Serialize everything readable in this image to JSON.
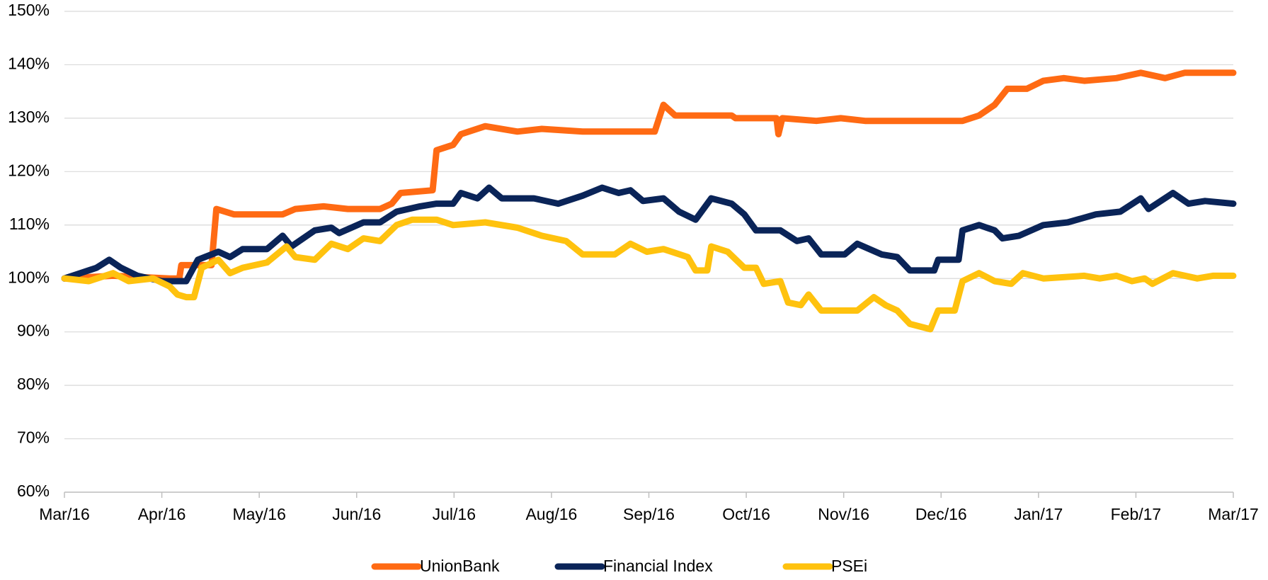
{
  "chart_data": {
    "type": "line",
    "xlim": [
      0,
      12
    ],
    "xticks": [
      {
        "value": 0,
        "label": "Mar/16"
      },
      {
        "value": 1,
        "label": "Apr/16"
      },
      {
        "value": 2,
        "label": "May/16"
      },
      {
        "value": 3,
        "label": "Jun/16"
      },
      {
        "value": 4,
        "label": "Jul/16"
      },
      {
        "value": 5,
        "label": "Aug/16"
      },
      {
        "value": 6,
        "label": "Sep/16"
      },
      {
        "value": 7,
        "label": "Oct/16"
      },
      {
        "value": 8,
        "label": "Nov/16"
      },
      {
        "value": 9,
        "label": "Dec/16"
      },
      {
        "value": 10,
        "label": "Jan/17"
      },
      {
        "value": 11,
        "label": "Feb/17"
      },
      {
        "value": 12,
        "label": "Mar/17"
      }
    ],
    "ylim": [
      60,
      150
    ],
    "yticks": [
      {
        "value": 60,
        "label": "60%"
      },
      {
        "value": 70,
        "label": "70%"
      },
      {
        "value": 80,
        "label": "80%"
      },
      {
        "value": 90,
        "label": "90%"
      },
      {
        "value": 100,
        "label": "100%"
      },
      {
        "value": 110,
        "label": "110%"
      },
      {
        "value": 120,
        "label": "120%"
      },
      {
        "value": 130,
        "label": "130%"
      },
      {
        "value": 140,
        "label": "140%"
      },
      {
        "value": 150,
        "label": "150%"
      }
    ],
    "grid": true,
    "legend": "bottom",
    "series": [
      {
        "name": "UnionBank",
        "color": "#ff6a13",
        "x": [
          0,
          0.5,
          1.08,
          1.18,
          1.2,
          1.51,
          1.56,
          1.74,
          1.99,
          2.24,
          2.37,
          2.66,
          2.91,
          3.24,
          3.36,
          3.45,
          3.78,
          3.82,
          3.99,
          4.07,
          4.32,
          4.65,
          4.9,
          5.32,
          5.65,
          6.06,
          6.15,
          6.27,
          6.64,
          6.85,
          6.89,
          7.31,
          7.33,
          7.37,
          7.72,
          7.97,
          8.22,
          8.89,
          9.22,
          9.39,
          9.55,
          9.68,
          9.88,
          10.05,
          10.26,
          10.47,
          10.8,
          11.05,
          11.3,
          11.5,
          12
        ],
        "values": [
          100,
          100.5,
          100,
          100,
          102.5,
          102.5,
          113,
          112,
          112,
          112,
          113,
          113.5,
          113,
          113,
          114,
          116,
          116.5,
          124,
          125,
          127,
          128.5,
          127.5,
          128,
          127.5,
          127.5,
          127.5,
          132.5,
          130.5,
          130.5,
          130.5,
          130,
          130,
          127,
          130,
          129.5,
          130,
          129.5,
          129.5,
          129.5,
          130.5,
          132.5,
          135.5,
          135.5,
          137,
          137.5,
          137,
          137.5,
          138.5,
          137.5,
          138.5,
          138.5
        ]
      },
      {
        "name": "Financial Index",
        "color": "#0a2458",
        "x": [
          0,
          0.33,
          0.46,
          0.58,
          0.75,
          1.0,
          1.25,
          1.37,
          1.58,
          1.7,
          1.83,
          2.08,
          2.24,
          2.33,
          2.57,
          2.74,
          2.82,
          3.07,
          3.24,
          3.41,
          3.65,
          3.82,
          3.99,
          4.07,
          4.24,
          4.36,
          4.49,
          4.82,
          5.07,
          5.32,
          5.52,
          5.69,
          5.81,
          5.94,
          6.15,
          6.31,
          6.48,
          6.64,
          6.85,
          6.98,
          7.1,
          7.35,
          7.52,
          7.64,
          7.77,
          8.01,
          8.14,
          8.39,
          8.55,
          8.68,
          8.93,
          8.97,
          9.18,
          9.22,
          9.39,
          9.55,
          9.63,
          9.8,
          10.05,
          10.3,
          10.59,
          10.84,
          11.05,
          11.13,
          11.38,
          11.54,
          11.71,
          12
        ],
        "values": [
          100,
          102,
          103.5,
          102,
          100.5,
          99.5,
          99.5,
          103.5,
          105,
          104,
          105.5,
          105.5,
          108,
          106,
          109,
          109.5,
          108.5,
          110.5,
          110.5,
          112.5,
          113.5,
          114,
          114,
          116,
          115,
          117,
          115,
          115,
          114,
          115.5,
          117,
          116,
          116.5,
          114.5,
          115,
          112.5,
          111,
          115,
          114,
          112,
          109,
          109,
          107,
          107.5,
          104.5,
          104.5,
          106.5,
          104.5,
          104,
          101.5,
          101.5,
          103.5,
          103.5,
          109,
          110,
          109,
          107.5,
          108,
          110,
          110.5,
          112,
          112.5,
          115,
          113,
          116,
          114,
          114.5,
          114
        ]
      },
      {
        "name": "PSEi",
        "color": "#ffc20e",
        "x": [
          0,
          0.25,
          0.5,
          0.66,
          0.91,
          1.08,
          1.16,
          1.25,
          1.33,
          1.41,
          1.58,
          1.7,
          1.83,
          2.08,
          2.28,
          2.37,
          2.57,
          2.74,
          2.91,
          3.07,
          3.24,
          3.41,
          3.57,
          3.82,
          3.99,
          4.32,
          4.65,
          4.9,
          5.15,
          5.32,
          5.65,
          5.81,
          5.98,
          6.15,
          6.4,
          6.48,
          6.6,
          6.64,
          6.81,
          6.98,
          7.1,
          7.18,
          7.35,
          7.43,
          7.56,
          7.64,
          7.77,
          7.97,
          8.14,
          8.31,
          8.43,
          8.55,
          8.68,
          8.89,
          8.97,
          9.14,
          9.22,
          9.39,
          9.55,
          9.72,
          9.84,
          10.05,
          10.47,
          10.63,
          10.8,
          10.96,
          11.09,
          11.17,
          11.38,
          11.63,
          11.79,
          12
        ],
        "values": [
          100,
          99.5,
          101,
          99.5,
          100,
          98.5,
          97,
          96.5,
          96.5,
          102,
          103.5,
          101,
          102,
          103,
          106,
          104,
          103.5,
          106.5,
          105.5,
          107.5,
          107,
          110,
          111,
          111,
          110,
          110.5,
          109.5,
          108,
          107,
          104.5,
          104.5,
          106.5,
          105,
          105.5,
          104,
          101.5,
          101.5,
          106,
          105,
          102,
          102,
          99,
          99.5,
          95.5,
          95,
          97,
          94,
          94,
          94,
          96.5,
          95,
          94,
          91.5,
          90.5,
          94,
          94,
          99.5,
          101,
          99.5,
          99,
          101,
          100,
          100.5,
          100,
          100.5,
          99.5,
          100,
          99,
          101,
          100,
          100.5,
          100.5
        ]
      }
    ]
  }
}
